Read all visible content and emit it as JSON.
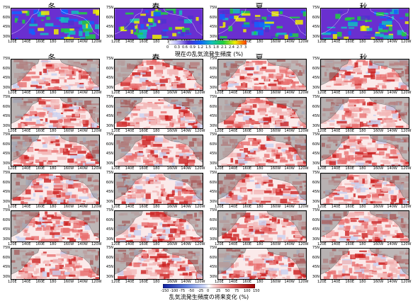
{
  "seasons": [
    "冬",
    "春",
    "夏",
    "秋"
  ],
  "lat_ticks": [
    "75N",
    "60N",
    "45N",
    "30N"
  ],
  "lon_ticks": [
    "120E",
    "140E",
    "160E",
    "180",
    "160W",
    "140W",
    "120W"
  ],
  "top_colorbar": {
    "ticks": [
      "0",
      "0.3",
      "0.6",
      "0.9",
      "1.2",
      "1.5",
      "1.8",
      "2.1",
      "2.4",
      "2.7",
      "3"
    ],
    "label": "現在の乱気流発生頻度 (%)"
  },
  "bottom_colorbar": {
    "ticks": [
      "-150",
      "-100",
      "-75",
      "-50",
      "-25",
      "0",
      "25",
      "50",
      "75",
      "100",
      "150"
    ],
    "label": "乱気流発生頻度の将来変化 (%)"
  },
  "colors": {
    "current_low": "#6a2fd0",
    "current_high": "#f0f000",
    "change_neg": "#2040c0",
    "change_pos": "#e01010",
    "land": "#8c8c8c"
  }
}
